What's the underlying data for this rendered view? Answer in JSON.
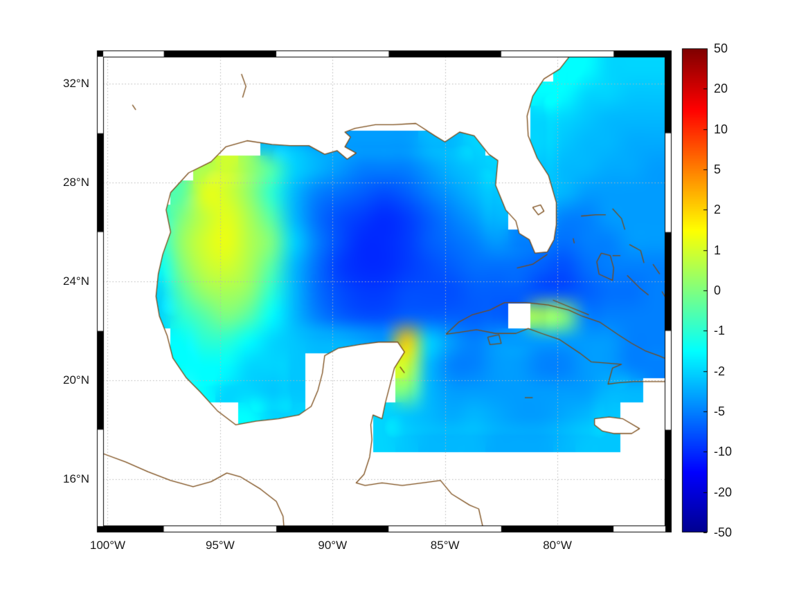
{
  "figure": {
    "bg": "#ffffff",
    "frame_black": "#000000",
    "frame_white": "#ffffff",
    "coast_color": "#7a4a16",
    "grid_color": "#b5b5b5",
    "label_color": "#191919"
  },
  "chart_data": {
    "type": "heatmap",
    "title": "",
    "x_axis": {
      "ticks": [
        "100°W",
        "95°W",
        "90°W",
        "85°W",
        "80°W"
      ],
      "values": [
        -100,
        -95,
        -90,
        -85,
        -80
      ]
    },
    "y_axis": {
      "ticks": [
        "32°N",
        "28°N",
        "24°N",
        "20°N",
        "16°N"
      ],
      "values": [
        32,
        28,
        24,
        20,
        16
      ]
    },
    "extent": {
      "lon_min": -100.2,
      "lon_max": -75.2,
      "lat_min": 14.1,
      "lat_max": 33.1
    },
    "colormap": "jet",
    "colorbar_ticks": [
      "50",
      "20",
      "10",
      "5",
      "2",
      "1",
      "0",
      "-1",
      "-2",
      "-5",
      "-10",
      "-20",
      "-50"
    ],
    "color_scale_anchors": [
      50,
      20,
      10,
      5,
      2,
      1,
      0,
      -1,
      -2,
      -5,
      -10,
      -20,
      -50
    ],
    "grid": {
      "ncols": 25,
      "nrows": 19,
      "lon_start": -100.2,
      "lon_step": 1.0,
      "lat_start": 33.1,
      "lat_step": -1.0
    },
    "values": [
      [
        null,
        null,
        null,
        null,
        null,
        null,
        null,
        null,
        null,
        null,
        null,
        null,
        null,
        null,
        null,
        null,
        null,
        null,
        null,
        null,
        -1.5,
        -1.5,
        -2,
        -2,
        -2
      ],
      [
        null,
        null,
        null,
        null,
        null,
        null,
        null,
        null,
        null,
        null,
        null,
        null,
        null,
        null,
        null,
        null,
        null,
        null,
        null,
        -1.5,
        -1.5,
        -2,
        -2,
        -2.5,
        -2.5
      ],
      [
        null,
        null,
        null,
        null,
        null,
        null,
        null,
        null,
        null,
        null,
        null,
        null,
        null,
        null,
        null,
        null,
        null,
        null,
        null,
        -2,
        -2,
        -2.5,
        -3,
        -3,
        -3
      ],
      [
        null,
        null,
        null,
        null,
        null,
        null,
        null,
        -3,
        -3,
        -4,
        -4,
        -4,
        -4,
        -4,
        -3,
        -3,
        -2,
        null,
        null,
        -2,
        -2.5,
        -3,
        -3,
        -3.5,
        -3.5
      ],
      [
        null,
        null,
        null,
        null,
        0.5,
        1,
        0.3,
        -0.5,
        -2,
        -3,
        -4,
        -5,
        -5,
        -5,
        -4,
        -3,
        -2.5,
        -2,
        null,
        -2.5,
        -3,
        -3,
        -3.5,
        -3.5,
        -4
      ],
      [
        null,
        null,
        null,
        -0.5,
        1.2,
        1,
        0.2,
        -1,
        -3,
        -5,
        -6,
        -7,
        -8,
        -7,
        -5,
        -4,
        -3,
        -2.5,
        null,
        -3,
        -3,
        -4,
        -4,
        -4,
        -4
      ],
      [
        null,
        null,
        -1,
        0,
        0.8,
        1.2,
        0.5,
        -0.5,
        -3,
        -6,
        -8,
        -9,
        -10,
        -9,
        -7,
        -5,
        -4,
        -3,
        null,
        -4,
        -5,
        -5,
        -4,
        -4,
        -4
      ],
      [
        null,
        null,
        -1,
        0.3,
        1,
        1.3,
        0.6,
        0,
        -2,
        -5,
        -8,
        -10,
        -10,
        -9,
        -7,
        -6,
        -5,
        -4,
        -5,
        -5,
        -6,
        -5,
        -5,
        -4,
        -4
      ],
      [
        null,
        null,
        -1.5,
        0,
        0.8,
        1,
        0.5,
        -0.5,
        -3,
        -6,
        -9,
        -10,
        -10,
        -9,
        -8,
        -7,
        -6,
        -6,
        -6,
        -7,
        -8,
        -6,
        -5,
        -5,
        -5
      ],
      [
        null,
        null,
        -2,
        -0.5,
        0.3,
        0.5,
        0.2,
        -1,
        -3,
        -6,
        -8,
        -9,
        -9,
        -8,
        -8,
        -8,
        -7,
        -7,
        -7,
        -8,
        -8,
        -7,
        -6,
        -6,
        -5
      ],
      [
        null,
        null,
        -2,
        -1,
        -0.5,
        0,
        -0.5,
        -1.5,
        -3,
        -5,
        -7,
        -8,
        -8,
        -7,
        -7,
        -7,
        -7,
        -7,
        null,
        0.5,
        0.2,
        -5,
        -5,
        -5,
        -5
      ],
      [
        null,
        null,
        null,
        -1.5,
        -1,
        -1,
        -1.5,
        -2,
        -2.5,
        -3,
        -3,
        -3.5,
        -4,
        2.2,
        -2,
        -4,
        -5,
        -4,
        -4,
        -4,
        -4,
        -4,
        -4,
        -5,
        -5
      ],
      [
        null,
        null,
        null,
        -1.5,
        -1.5,
        -1.5,
        -2,
        -2,
        -2.5,
        null,
        null,
        null,
        null,
        1,
        -3,
        -5,
        -5,
        -4,
        -4,
        -5,
        -5,
        -4,
        -4,
        -5,
        -5
      ],
      [
        null,
        null,
        null,
        -1,
        -1.5,
        -2,
        -2,
        -2.5,
        -2.5,
        null,
        null,
        null,
        null,
        0,
        -3,
        -4,
        -4,
        -4,
        -4,
        -4,
        -4,
        -4,
        -3,
        -3,
        null
      ],
      [
        null,
        null,
        null,
        null,
        null,
        null,
        -1.5,
        -2,
        -2,
        null,
        null,
        null,
        -2,
        -2.5,
        -3,
        -3.5,
        -3,
        -3.5,
        -4,
        -4,
        -3.5,
        -3,
        -2.5,
        null,
        null
      ],
      [
        null,
        null,
        null,
        null,
        null,
        null,
        null,
        null,
        null,
        null,
        null,
        null,
        -2,
        -2.5,
        -3,
        -3,
        -3,
        -3.5,
        -3.5,
        -3.5,
        -3,
        -2.5,
        -2.5,
        null,
        null
      ],
      [
        null,
        null,
        null,
        null,
        null,
        null,
        null,
        null,
        null,
        null,
        null,
        null,
        null,
        null,
        null,
        null,
        null,
        null,
        null,
        null,
        null,
        null,
        null,
        null,
        null
      ],
      [
        null,
        null,
        null,
        null,
        null,
        null,
        null,
        null,
        null,
        null,
        null,
        null,
        null,
        null,
        null,
        null,
        null,
        null,
        null,
        null,
        null,
        null,
        null,
        null,
        null
      ],
      [
        null,
        null,
        null,
        null,
        null,
        null,
        null,
        null,
        null,
        null,
        null,
        null,
        null,
        null,
        null,
        null,
        null,
        null,
        null,
        null,
        null,
        null,
        null,
        null,
        null
      ]
    ]
  },
  "map_layers": {
    "mainland_coast": [
      [
        -79.3,
        33.3
      ],
      [
        -79.9,
        32.6
      ],
      [
        -80.6,
        32.2
      ],
      [
        -81.1,
        31.5
      ],
      [
        -81.35,
        30.7
      ],
      [
        -81.3,
        29.9
      ],
      [
        -80.9,
        29.0
      ],
      [
        -80.4,
        28.3
      ],
      [
        -80.05,
        27.2
      ],
      [
        -80.05,
        26.3
      ],
      [
        -80.15,
        25.7
      ],
      [
        -80.45,
        25.2
      ],
      [
        -81.0,
        25.15
      ],
      [
        -81.25,
        25.7
      ],
      [
        -81.7,
        25.95
      ],
      [
        -81.85,
        26.45
      ],
      [
        -82.3,
        26.9
      ],
      [
        -82.75,
        27.9
      ],
      [
        -82.65,
        28.9
      ],
      [
        -83.05,
        29.15
      ],
      [
        -83.7,
        29.9
      ],
      [
        -84.35,
        30.05
      ],
      [
        -85.0,
        29.65
      ],
      [
        -85.45,
        29.9
      ],
      [
        -86.3,
        30.4
      ],
      [
        -87.3,
        30.35
      ],
      [
        -88.1,
        30.35
      ],
      [
        -89.0,
        30.2
      ],
      [
        -89.45,
        30.05
      ],
      [
        -89.2,
        29.85
      ],
      [
        -89.45,
        29.45
      ],
      [
        -88.95,
        29.2
      ],
      [
        -89.35,
        28.95
      ],
      [
        -89.8,
        29.3
      ],
      [
        -90.35,
        29.15
      ],
      [
        -91.05,
        29.5
      ],
      [
        -91.9,
        29.5
      ],
      [
        -92.7,
        29.55
      ],
      [
        -93.8,
        29.7
      ],
      [
        -94.75,
        29.45
      ],
      [
        -95.4,
        28.85
      ],
      [
        -96.4,
        28.4
      ],
      [
        -97.2,
        27.6
      ],
      [
        -97.4,
        26.9
      ],
      [
        -97.2,
        26.0
      ],
      [
        -97.55,
        25.1
      ],
      [
        -97.75,
        24.3
      ],
      [
        -97.85,
        23.4
      ],
      [
        -97.7,
        22.6
      ],
      [
        -97.35,
        21.8
      ],
      [
        -97.1,
        20.9
      ],
      [
        -96.5,
        20.1
      ],
      [
        -95.9,
        19.55
      ],
      [
        -95.1,
        18.75
      ],
      [
        -94.3,
        18.2
      ],
      [
        -93.4,
        18.35
      ],
      [
        -92.4,
        18.45
      ],
      [
        -91.5,
        18.6
      ],
      [
        -90.95,
        18.95
      ],
      [
        -90.65,
        19.6
      ],
      [
        -90.45,
        20.3
      ],
      [
        -90.35,
        21.0
      ],
      [
        -89.75,
        21.3
      ],
      [
        -88.8,
        21.45
      ],
      [
        -87.95,
        21.55
      ],
      [
        -87.1,
        21.55
      ],
      [
        -86.8,
        21.15
      ],
      [
        -87.25,
        20.5
      ],
      [
        -87.45,
        19.8
      ],
      [
        -87.65,
        19.1
      ],
      [
        -87.8,
        18.45
      ],
      [
        -88.2,
        18.6
      ],
      [
        -88.3,
        18.2
      ],
      [
        -88.25,
        17.6
      ],
      [
        -88.35,
        16.9
      ],
      [
        -88.6,
        16.2
      ],
      [
        -88.95,
        15.85
      ],
      [
        -88.55,
        15.75
      ],
      [
        -87.8,
        15.85
      ],
      [
        -86.9,
        15.75
      ],
      [
        -86.0,
        15.85
      ],
      [
        -85.2,
        15.95
      ],
      [
        -84.7,
        15.4
      ],
      [
        -83.9,
        14.95
      ],
      [
        -83.5,
        14.8
      ],
      [
        -83.3,
        14.0
      ]
    ],
    "mainland_close": [
      [
        -83.3,
        13.5
      ],
      [
        -101.5,
        13.5
      ],
      [
        -101.5,
        33.6
      ],
      [
        -79.3,
        33.6
      ]
    ],
    "pacific_coast": [
      [
        -100.4,
        17.1
      ],
      [
        -99.2,
        16.7
      ],
      [
        -98.2,
        16.3
      ],
      [
        -97.2,
        15.95
      ],
      [
        -96.2,
        15.7
      ],
      [
        -95.4,
        15.9
      ],
      [
        -94.7,
        16.25
      ],
      [
        -94.1,
        16.1
      ],
      [
        -93.2,
        15.6
      ],
      [
        -92.5,
        15.1
      ],
      [
        -92.2,
        14.5
      ],
      [
        -92.15,
        13.9
      ]
    ],
    "cuba": [
      [
        -84.95,
        21.87
      ],
      [
        -84.4,
        22.35
      ],
      [
        -83.8,
        22.65
      ],
      [
        -83.0,
        22.85
      ],
      [
        -82.35,
        23.15
      ],
      [
        -81.4,
        23.15
      ],
      [
        -80.4,
        23.05
      ],
      [
        -79.5,
        22.85
      ],
      [
        -78.9,
        22.6
      ],
      [
        -78.1,
        22.35
      ],
      [
        -77.3,
        21.85
      ],
      [
        -76.7,
        21.5
      ],
      [
        -76.1,
        21.2
      ],
      [
        -75.5,
        21.0
      ],
      [
        -75.1,
        20.85
      ],
      [
        -75.1,
        19.95
      ],
      [
        -75.8,
        19.95
      ],
      [
        -76.6,
        19.95
      ],
      [
        -77.3,
        19.9
      ],
      [
        -77.75,
        19.85
      ],
      [
        -77.55,
        20.5
      ],
      [
        -77.15,
        20.65
      ],
      [
        -77.8,
        20.7
      ],
      [
        -78.5,
        20.75
      ],
      [
        -79.0,
        21.1
      ],
      [
        -79.9,
        21.65
      ],
      [
        -80.7,
        21.9
      ],
      [
        -81.3,
        22.1
      ],
      [
        -81.85,
        21.9
      ],
      [
        -82.75,
        21.9
      ],
      [
        -83.6,
        22.05
      ],
      [
        -84.3,
        21.95
      ],
      [
        -84.95,
        21.87
      ]
    ],
    "jamaica": [
      [
        -78.35,
        18.45
      ],
      [
        -77.7,
        18.52
      ],
      [
        -77.1,
        18.45
      ],
      [
        -76.35,
        18.05
      ],
      [
        -76.7,
        17.85
      ],
      [
        -77.5,
        17.85
      ],
      [
        -78.0,
        17.95
      ],
      [
        -78.35,
        18.2
      ],
      [
        -78.35,
        18.45
      ]
    ],
    "islands": [
      [
        [
          -83.1,
          21.75
        ],
        [
          -82.6,
          21.85
        ],
        [
          -82.5,
          21.5
        ],
        [
          -83.0,
          21.45
        ],
        [
          -83.1,
          21.75
        ]
      ],
      [
        [
          -78.95,
          26.65
        ],
        [
          -78.3,
          26.7
        ],
        [
          -77.85,
          26.7
        ]
      ],
      [
        [
          -77.55,
          26.95
        ],
        [
          -77.15,
          26.55
        ],
        [
          -77.0,
          26.1
        ]
      ],
      [
        [
          -79.3,
          25.75
        ],
        [
          -79.25,
          25.55
        ]
      ],
      [
        [
          -78.05,
          25.15
        ],
        [
          -77.65,
          25.05
        ],
        [
          -77.5,
          24.55
        ],
        [
          -77.55,
          24.05
        ],
        [
          -78.15,
          24.3
        ],
        [
          -78.25,
          24.8
        ],
        [
          -78.05,
          25.15
        ]
      ],
      [
        [
          -77.55,
          25.05
        ],
        [
          -77.2,
          25.05
        ]
      ],
      [
        [
          -76.8,
          25.5
        ],
        [
          -76.3,
          25.25
        ],
        [
          -76.15,
          24.75
        ]
      ],
      [
        [
          -75.75,
          24.7
        ],
        [
          -75.45,
          24.3
        ]
      ],
      [
        [
          -76.9,
          24.25
        ],
        [
          -76.35,
          23.75
        ],
        [
          -75.95,
          23.45
        ]
      ],
      [
        [
          -75.35,
          23.6
        ],
        [
          -75.1,
          23.2
        ]
      ],
      [
        [
          -80.2,
          23.25
        ],
        [
          -79.4,
          22.95
        ],
        [
          -78.6,
          22.65
        ]
      ],
      [
        [
          -81.45,
          19.3
        ],
        [
          -81.1,
          19.3
        ]
      ],
      [
        [
          -87.0,
          20.55
        ],
        [
          -86.8,
          20.3
        ]
      ],
      [
        [
          -80.45,
          25.1
        ],
        [
          -81.1,
          24.7
        ],
        [
          -81.8,
          24.55
        ]
      ],
      [
        [
          -81.1,
          27.0
        ],
        [
          -80.75,
          27.1
        ],
        [
          -80.6,
          26.85
        ],
        [
          -80.85,
          26.7
        ],
        [
          -81.1,
          27.0
        ]
      ],
      [
        [
          -94.05,
          32.4
        ],
        [
          -93.85,
          31.9
        ],
        [
          -94.0,
          31.45
        ]
      ],
      [
        [
          -98.9,
          31.15
        ],
        [
          -98.75,
          30.95
        ]
      ]
    ]
  }
}
